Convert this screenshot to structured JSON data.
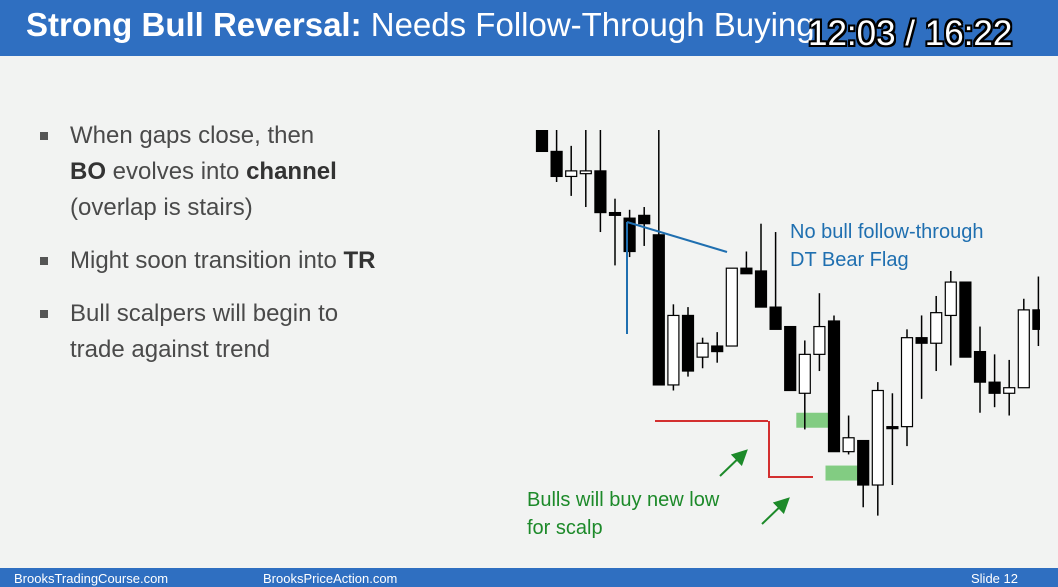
{
  "title": {
    "bold": "Strong Bull Reversal:",
    "rest": " Needs Follow-Through Buying"
  },
  "video_time": "12:03 / 16:22",
  "bullets": [
    {
      "lines": [
        [
          {
            "t": "When gaps close, then",
            "b": false
          }
        ],
        [
          {
            "t": "BO",
            "b": true
          },
          {
            "t": " evolves into ",
            "b": false
          },
          {
            "t": "channel",
            "b": true
          }
        ],
        [
          {
            "t": "(overlap is stairs)",
            "b": false
          }
        ]
      ]
    },
    {
      "lines": [
        [
          {
            "t": "Might soon transition into ",
            "b": false
          },
          {
            "t": "TR",
            "b": true
          }
        ]
      ]
    },
    {
      "lines": [
        [
          {
            "t": "Bull scalpers will begin to",
            "b": false
          }
        ],
        [
          {
            "t": "trade against trend",
            "b": false
          }
        ]
      ]
    }
  ],
  "annotations": {
    "blue_line1": "No bull follow-through",
    "blue_line2": "DT Bear Flag",
    "green_line1": "Bulls will buy new low",
    "green_line2": "for scalp"
  },
  "colors": {
    "title_bar": "#2f6fc1",
    "bull_body": "#ffffff",
    "bear_body": "#000000",
    "trendline": "#1f6fb0",
    "support_line": "#d32f2f",
    "highlight": "#5cbf5c",
    "arrow": "#1d8a2a"
  },
  "chart_data": {
    "type": "candlestick",
    "candles": [
      {
        "o": 40,
        "h": 40,
        "l": 11,
        "c": 11
      },
      {
        "o": 11,
        "h": 25,
        "l": 0,
        "c": 2
      },
      {
        "o": 2,
        "h": 13,
        "l": -5,
        "c": 4
      },
      {
        "o": 3,
        "h": 32,
        "l": -9,
        "c": 4
      },
      {
        "o": 4,
        "h": 27,
        "l": -18,
        "c": -11
      },
      {
        "o": -11,
        "h": -6,
        "l": -30,
        "c": -12
      },
      {
        "o": -13,
        "h": -10,
        "l": -27,
        "c": -25
      },
      {
        "o": -12,
        "h": -9,
        "l": -23,
        "c": -15
      },
      {
        "o": -19,
        "h": 35,
        "l": -73,
        "c": -73
      },
      {
        "o": -73,
        "h": -44,
        "l": -75,
        "c": -48
      },
      {
        "o": -48,
        "h": -45,
        "l": -70,
        "c": -68
      },
      {
        "o": -63,
        "h": -56,
        "l": -67,
        "c": -58
      },
      {
        "o": -59,
        "h": -54,
        "l": -65,
        "c": -61
      },
      {
        "o": -59,
        "h": -31,
        "l": -59,
        "c": -31
      },
      {
        "o": -31,
        "h": -25,
        "l": -32,
        "c": -33
      },
      {
        "o": -32,
        "h": -15,
        "l": -45,
        "c": -45
      },
      {
        "o": -45,
        "h": -18,
        "l": -53,
        "c": -53
      },
      {
        "o": -52,
        "h": -52,
        "l": -75,
        "c": -75
      },
      {
        "o": -76,
        "h": -57,
        "l": -89,
        "c": -62
      },
      {
        "o": -62,
        "h": -40,
        "l": -68,
        "c": -52
      },
      {
        "o": -50,
        "h": -48,
        "l": -97,
        "c": -97
      },
      {
        "o": -97,
        "h": -84,
        "l": -98,
        "c": -92
      },
      {
        "o": -93,
        "h": -93,
        "l": -117,
        "c": -109
      },
      {
        "o": -109,
        "h": -72,
        "l": -120,
        "c": -75
      },
      {
        "o": -88,
        "h": -76,
        "l": -109,
        "c": -88
      },
      {
        "o": -88,
        "h": -53,
        "l": -95,
        "c": -56
      },
      {
        "o": -56,
        "h": -48,
        "l": -78,
        "c": -58
      },
      {
        "o": -58,
        "h": -41,
        "l": -68,
        "c": -47
      },
      {
        "o": -48,
        "h": -32,
        "l": -66,
        "c": -36
      },
      {
        "o": -36,
        "h": -36,
        "l": -63,
        "c": -63
      },
      {
        "o": -61,
        "h": -52,
        "l": -83,
        "c": -72
      },
      {
        "o": -72,
        "h": -62,
        "l": -81,
        "c": -76
      },
      {
        "o": -76,
        "h": -64,
        "l": -84,
        "c": -74
      },
      {
        "o": -74,
        "h": -42,
        "l": -74,
        "c": -46
      },
      {
        "o": -46,
        "h": -34,
        "l": -59,
        "c": -53
      },
      {
        "o": -53,
        "h": -41,
        "l": -59,
        "c": -50
      },
      {
        "o": -50,
        "h": -38,
        "l": -63,
        "c": -55
      },
      {
        "o": -55,
        "h": -49,
        "l": -80,
        "c": -57
      }
    ]
  }
}
